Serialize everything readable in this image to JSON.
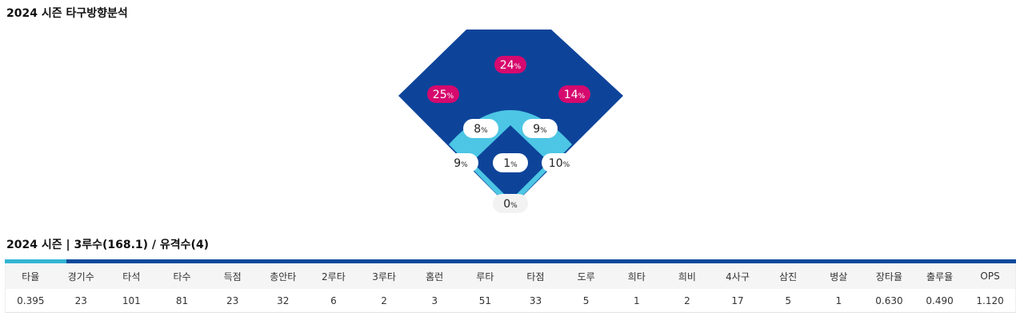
{
  "direction": {
    "title": "2024 시즌 타구방향분석",
    "percent_sign": "%",
    "zones": [
      {
        "id": "deep-center",
        "value": "24"
      },
      {
        "id": "deep-left",
        "value": "25"
      },
      {
        "id": "deep-right",
        "value": "14"
      },
      {
        "id": "mid-left",
        "value": "8"
      },
      {
        "id": "mid-right",
        "value": "9"
      },
      {
        "id": "left-line",
        "value": "9"
      },
      {
        "id": "center-infield",
        "value": "1"
      },
      {
        "id": "right-line",
        "value": "10"
      },
      {
        "id": "home",
        "value": "0"
      }
    ],
    "colors": {
      "outfield": "#0d449a",
      "infield_ring": "#4cc6e4",
      "infield_diamond": "#0d449a",
      "outfield_badge": "#d6096e",
      "infield_badge": "#ffffff",
      "home_badge": "#f2f2f2"
    }
  },
  "summary": {
    "title": "2024 시즌 | 3루수(168.1) / 유격수(4)",
    "colors": {
      "bar": "#0a4a9b",
      "accent": "#33b5d4"
    }
  },
  "stats": {
    "headers": [
      "타율",
      "경기수",
      "타석",
      "타수",
      "득점",
      "총안타",
      "2루타",
      "3루타",
      "홈런",
      "루타",
      "타점",
      "도루",
      "희타",
      "희비",
      "4사구",
      "삼진",
      "병살",
      "장타율",
      "출루율",
      "OPS"
    ],
    "values": [
      "0.395",
      "23",
      "101",
      "81",
      "23",
      "32",
      "6",
      "2",
      "3",
      "51",
      "33",
      "5",
      "1",
      "2",
      "17",
      "5",
      "1",
      "0.630",
      "0.490",
      "1.120"
    ]
  }
}
